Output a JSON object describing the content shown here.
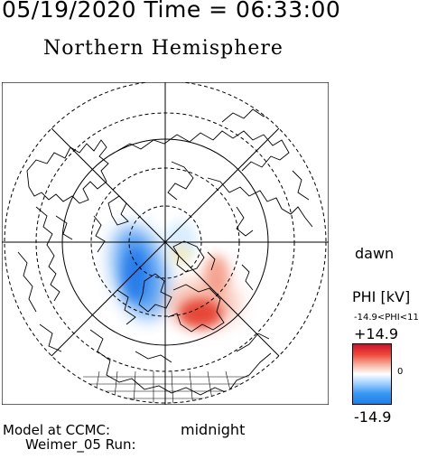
{
  "header": {
    "datetime": "05/19/2020 Time = 06:33:00",
    "hemisphere": "Northern Hemisphere"
  },
  "map": {
    "projection": "polar stereographic, north pole",
    "side_labels": {
      "right": "dawn",
      "bottom": "midnight"
    },
    "graticule": "dashed latitude circles, 45-degree meridian lines",
    "potential_features": [
      {
        "sign": "negative",
        "color": "#3a8ef0",
        "description": "dusk-side negative cell (blue)"
      },
      {
        "sign": "positive",
        "color": "#e23a2a",
        "description": "dawn-side positive cell (red)"
      }
    ]
  },
  "colorbar": {
    "title": "PHI [kV]",
    "range_text": "-14.9<PHI<11",
    "max_label": "+14.9",
    "zero_label": "0",
    "min_label": "-14.9",
    "colors": {
      "max": "#e8302a",
      "mid": "#ffffff",
      "min": "#1f8cf0"
    }
  },
  "footer": {
    "model_line1": "Model at CCMC:",
    "model_line2": "Weimer_05 Run:"
  }
}
